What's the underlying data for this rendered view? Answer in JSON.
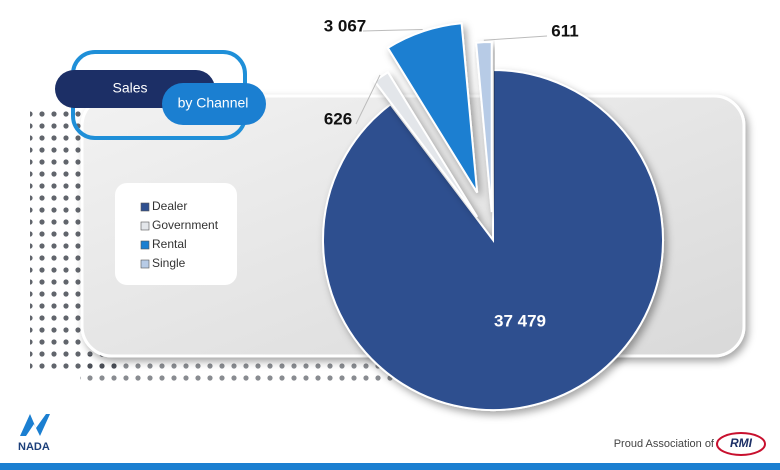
{
  "chart_data": {
    "type": "pie",
    "title": "Sales",
    "subtitle": "by Channel",
    "categories": [
      "Dealer",
      "Government",
      "Rental",
      "Single"
    ],
    "values": [
      37479,
      626,
      3067,
      611
    ],
    "value_labels": [
      "37 479",
      "626",
      "3 067",
      "611"
    ],
    "colors": [
      "#2e4f8f",
      "#e3e6ea",
      "#1b7fd1",
      "#b7cbe6"
    ],
    "legend": "left"
  },
  "footer": {
    "logo": "NADA",
    "association": "Proud Association of",
    "partner": "RMI"
  }
}
